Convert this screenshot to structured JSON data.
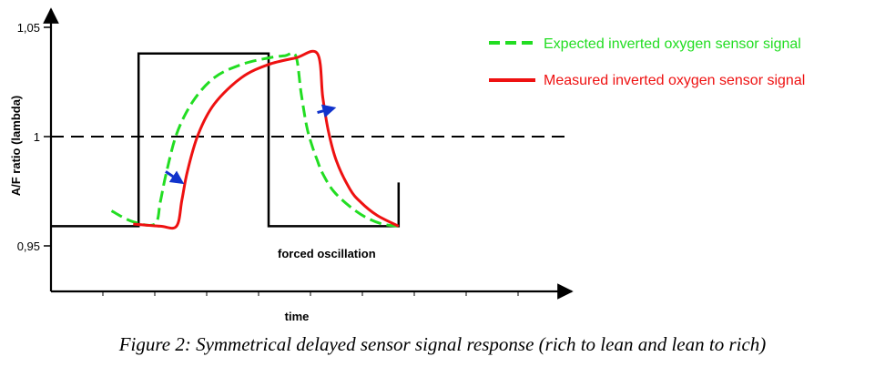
{
  "caption": "Figure 2: Symmetrical delayed sensor signal response (rich to lean and lean to rich)",
  "chart_data": {
    "type": "line",
    "xlabel": "time",
    "ylabel": "A/F ratio (lambda)",
    "yticks": [
      "1,05",
      "1",
      "0,95"
    ],
    "ylim": [
      0.93,
      1.058
    ],
    "reference_line": {
      "y": 1.0,
      "style": "dashed"
    },
    "annotation": "forced oscillation",
    "colors": {
      "forced": "#000000",
      "expected": "#22dd22",
      "measured": "#ee1111",
      "delay_arrow": "#1133cc"
    },
    "series": [
      {
        "name": "",
        "role": "forced-oscillation",
        "x": [
          0,
          1.6,
          1.6,
          4.0,
          4.0,
          6.4,
          6.4
        ],
        "y": [
          0.959,
          0.959,
          1.038,
          1.038,
          0.959,
          0.959,
          0.979
        ]
      },
      {
        "name": "Expected inverted oxygen sensor signal",
        "x": [
          1.1,
          1.5,
          1.9,
          2.0,
          2.1,
          2.3,
          2.6,
          3.0,
          3.5,
          4.0,
          4.3,
          4.5,
          4.6,
          4.7,
          4.8,
          4.9,
          5.0,
          5.2,
          5.5,
          5.8,
          6.1,
          6.4
        ],
        "y": [
          0.966,
          0.961,
          0.96,
          0.97,
          0.982,
          1.001,
          1.016,
          1.027,
          1.033,
          1.036,
          1.037,
          1.037,
          1.02,
          1.005,
          0.996,
          0.989,
          0.983,
          0.975,
          0.968,
          0.963,
          0.96,
          0.959
        ]
      },
      {
        "name": "Measured inverted oxygen sensor signal",
        "x": [
          1.5,
          2.0,
          2.3,
          2.4,
          2.5,
          2.7,
          3.0,
          3.5,
          4.0,
          4.5,
          4.9,
          5.0,
          5.1,
          5.25,
          5.5,
          5.7,
          6.0,
          6.4
        ],
        "y": [
          0.96,
          0.959,
          0.959,
          0.971,
          0.984,
          1.001,
          1.015,
          1.027,
          1.033,
          1.036,
          1.038,
          1.018,
          1.003,
          0.989,
          0.976,
          0.97,
          0.964,
          0.959
        ]
      }
    ],
    "delay_arrows": [
      {
        "from": [
          2.1,
          0.984
        ],
        "to": [
          2.4,
          0.979
        ]
      },
      {
        "from": [
          4.9,
          1.011
        ],
        "to": [
          5.2,
          1.013
        ]
      }
    ]
  }
}
